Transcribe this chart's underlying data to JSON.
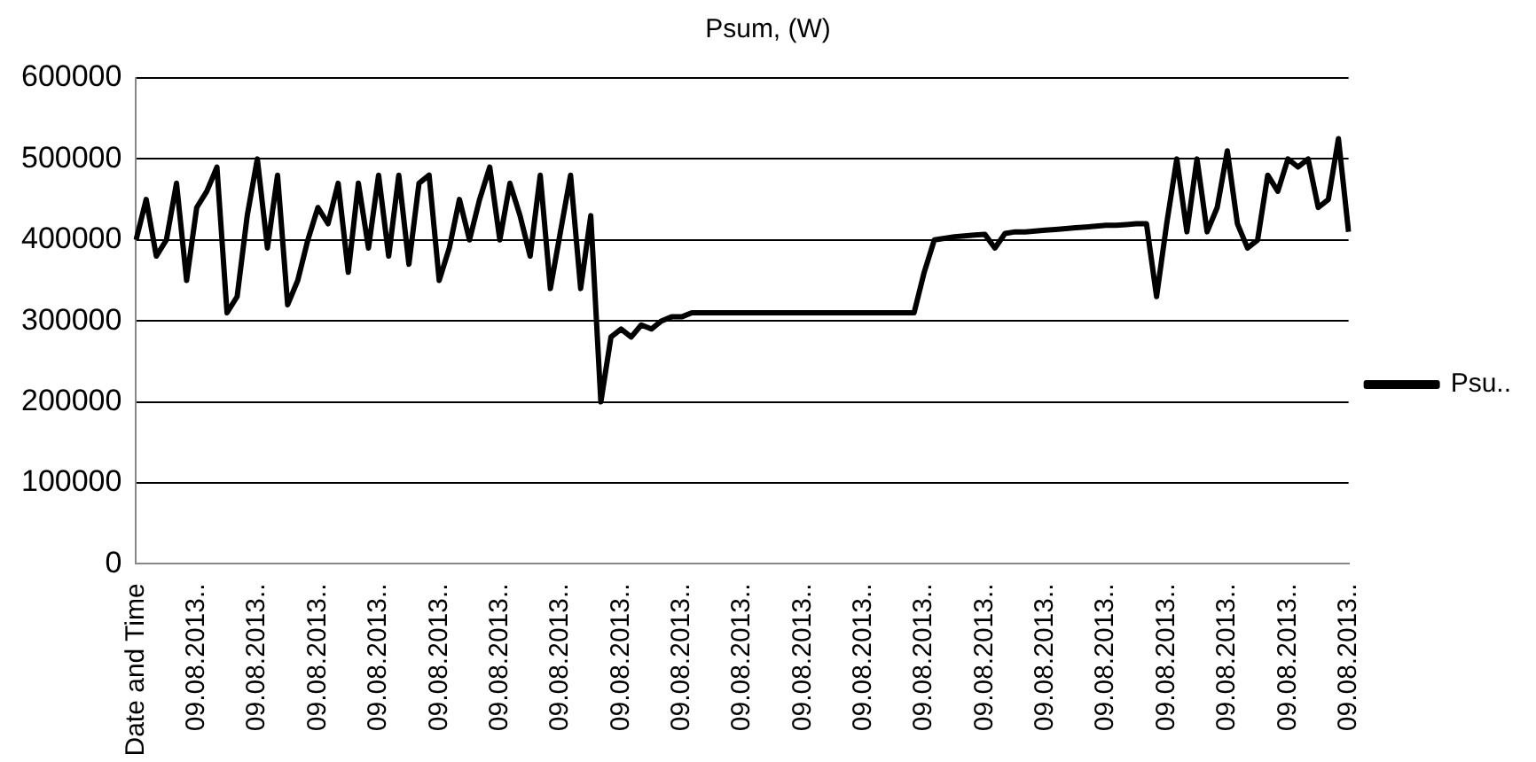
{
  "chart_data": {
    "type": "line",
    "title": "Psum, (W)",
    "categories": [
      "Date and Time",
      null,
      null,
      null,
      null,
      null,
      "09.08.2013..",
      null,
      null,
      null,
      null,
      null,
      "09.08.2013..",
      null,
      null,
      null,
      null,
      null,
      "09.08.2013..",
      null,
      null,
      null,
      null,
      null,
      "09.08.2013..",
      null,
      null,
      null,
      null,
      null,
      "09.08.2013..",
      null,
      null,
      null,
      null,
      null,
      "09.08.2013..",
      null,
      null,
      null,
      null,
      null,
      "09.08.2013..",
      null,
      null,
      null,
      null,
      null,
      "09.08.2013..",
      null,
      null,
      null,
      null,
      null,
      "09.08.2013..",
      null,
      null,
      null,
      null,
      null,
      "09.08.2013..",
      null,
      null,
      null,
      null,
      null,
      "09.08.2013..",
      null,
      null,
      null,
      null,
      null,
      "09.08.2013..",
      null,
      null,
      null,
      null,
      null,
      "09.08.2013..",
      null,
      null,
      null,
      null,
      null,
      "09.08.2013..",
      null,
      null,
      null,
      null,
      null,
      "09.08.2013..",
      null,
      null,
      null,
      null,
      null,
      "09.08.2013..",
      null,
      null,
      null,
      null,
      null,
      "09.08.2013..",
      null,
      null,
      null,
      null,
      null,
      "09.08.2013..",
      null,
      null,
      null,
      null,
      null,
      "09.08.2013..",
      null,
      null,
      null,
      null,
      null,
      "09.08.2013.."
    ],
    "series": [
      {
        "name": "Psu..",
        "color": "#000000",
        "values": [
          400000,
          450000,
          380000,
          400000,
          470000,
          350000,
          440000,
          460000,
          490000,
          310000,
          330000,
          430000,
          500000,
          390000,
          480000,
          320000,
          350000,
          400000,
          440000,
          420000,
          470000,
          360000,
          470000,
          390000,
          480000,
          380000,
          480000,
          370000,
          470000,
          480000,
          350000,
          390000,
          450000,
          400000,
          450000,
          490000,
          400000,
          470000,
          430000,
          380000,
          480000,
          340000,
          410000,
          480000,
          340000,
          430000,
          200000,
          280000,
          290000,
          280000,
          295000,
          290000,
          300000,
          305000,
          305000,
          310000,
          310000,
          310000,
          310000,
          310000,
          310000,
          310000,
          310000,
          310000,
          310000,
          310000,
          310000,
          310000,
          310000,
          310000,
          310000,
          310000,
          310000,
          310000,
          310000,
          310000,
          310000,
          310000,
          360000,
          400000,
          402000,
          404000,
          405000,
          406000,
          407000,
          390000,
          408000,
          410000,
          410000,
          411000,
          412000,
          413000,
          414000,
          415000,
          416000,
          417000,
          418000,
          418000,
          419000,
          420000,
          420000,
          330000,
          420000,
          500000,
          410000,
          500000,
          410000,
          440000,
          510000,
          420000,
          390000,
          400000,
          480000,
          460000,
          500000,
          490000,
          500000,
          440000,
          450000,
          525000,
          410000
        ]
      }
    ],
    "ylim": [
      0,
      600000
    ],
    "yticks": [
      0,
      100000,
      200000,
      300000,
      400000,
      500000,
      600000
    ],
    "grid": "y",
    "legend": "right",
    "marker": "none",
    "line_style": "solid"
  }
}
